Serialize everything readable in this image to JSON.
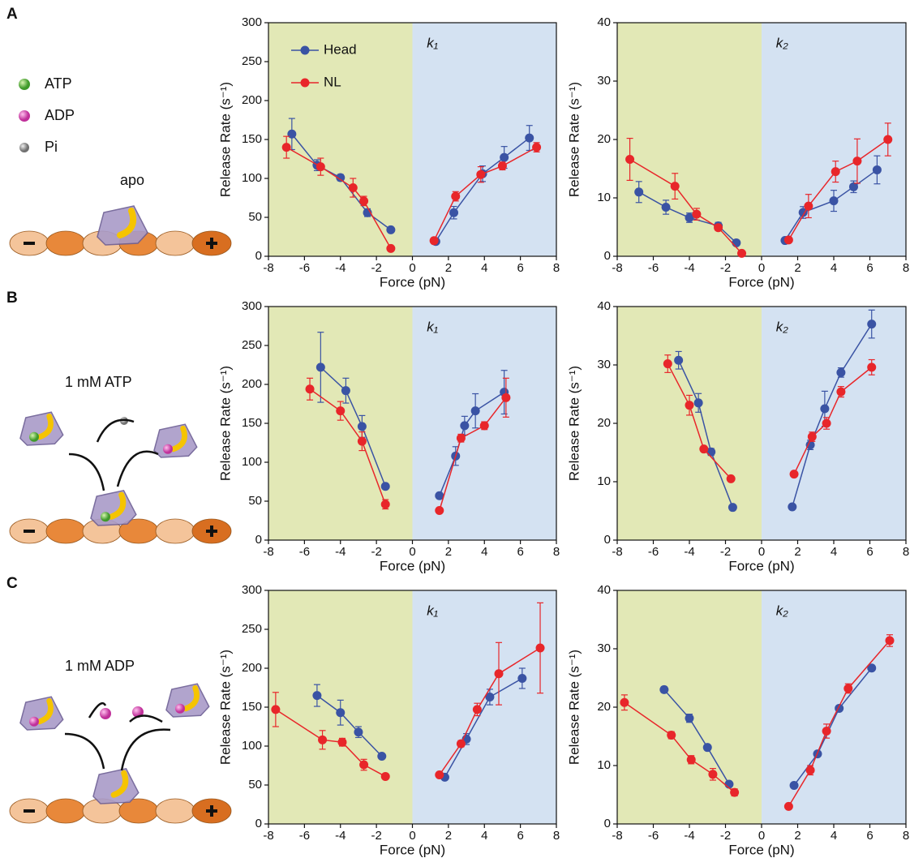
{
  "panels": [
    {
      "label": "A",
      "condition": "apo"
    },
    {
      "label": "B",
      "condition": "1 mM ATP"
    },
    {
      "label": "C",
      "condition": "1 mM ADP"
    }
  ],
  "legend_items": [
    "ATP",
    "ADP",
    "Pi"
  ],
  "chart_data": [
    {
      "type": "line",
      "annotation": "k₁",
      "xlabel": "Force (pN)",
      "ylabel": "Release Rate (s⁻¹)",
      "xlim": [
        -8,
        8
      ],
      "ylim": [
        0,
        300
      ],
      "xticks": [
        -8,
        -6,
        -4,
        -2,
        0,
        2,
        4,
        6,
        8
      ],
      "yticks": [
        0,
        50,
        100,
        150,
        200,
        250,
        300
      ],
      "legend": "upper left",
      "regions": [
        {
          "from": -8,
          "to": 0,
          "color": "#e2e8b6"
        },
        {
          "from": 0,
          "to": 8,
          "color": "#d4e2f2"
        }
      ],
      "series": [
        {
          "name": "Head",
          "color": "#3a53a4",
          "x": [
            -6.7,
            -5.3,
            -4,
            -2.5,
            -1.2,
            null,
            1.3,
            2.3,
            3.9,
            5.1,
            6.5
          ],
          "values": [
            157,
            117,
            101,
            56,
            34,
            null,
            19,
            56,
            106,
            127,
            152
          ],
          "errors": [
            20,
            7,
            4,
            5,
            null,
            null,
            null,
            8,
            10,
            14,
            16
          ]
        },
        {
          "name": "NL",
          "color": "#e8262a",
          "x": [
            -7,
            -5.1,
            -3.3,
            -2.7,
            -1.2,
            null,
            1.2,
            2.4,
            3.8,
            5,
            6.9
          ],
          "values": [
            140,
            115,
            88,
            71,
            10,
            null,
            20,
            77,
            105,
            116,
            140
          ],
          "errors": [
            14,
            11,
            12,
            6,
            null,
            null,
            null,
            6,
            10,
            5,
            6
          ]
        }
      ]
    },
    {
      "type": "line",
      "annotation": "k₂",
      "xlabel": "Force (pN)",
      "ylabel": "Release Rate (s⁻¹)",
      "xlim": [
        -8,
        8
      ],
      "ylim": [
        0,
        40
      ],
      "xticks": [
        -8,
        -6,
        -4,
        -2,
        0,
        2,
        4,
        6,
        8
      ],
      "yticks": [
        0,
        10,
        20,
        30,
        40
      ],
      "regions": [
        {
          "from": -8,
          "to": 0,
          "color": "#e2e8b6"
        },
        {
          "from": 0,
          "to": 8,
          "color": "#d4e2f2"
        }
      ],
      "series": [
        {
          "color": "#3a53a4",
          "x": [
            -6.8,
            -5.3,
            -4,
            -2.4,
            -1.4,
            null,
            1.3,
            2.3,
            4,
            5.1,
            6.4
          ],
          "values": [
            11,
            8.4,
            6.6,
            5.2,
            2.3,
            null,
            2.7,
            7.5,
            9.5,
            11.9,
            14.8
          ],
          "errors": [
            1.8,
            1.2,
            0.8,
            0.6,
            null,
            null,
            null,
            1,
            1.8,
            1,
            2.4
          ]
        },
        {
          "color": "#e8262a",
          "x": [
            -7.3,
            -4.8,
            -3.6,
            -2.4,
            -1.1,
            null,
            1.5,
            2.6,
            4.1,
            5.3,
            7
          ],
          "values": [
            16.6,
            12,
            7.2,
            4.9,
            0.5,
            null,
            2.8,
            8.6,
            14.5,
            16.3,
            20
          ],
          "errors": [
            3.6,
            2.2,
            1,
            0.5,
            null,
            null,
            null,
            2,
            1.8,
            3.8,
            2.8
          ]
        }
      ]
    },
    {
      "type": "line",
      "annotation": "k₁",
      "xlabel": "Force (pN)",
      "ylabel": "Release Rate (s⁻¹)",
      "xlim": [
        -8,
        8
      ],
      "ylim": [
        0,
        300
      ],
      "xticks": [
        -8,
        -6,
        -4,
        -2,
        0,
        2,
        4,
        6,
        8
      ],
      "yticks": [
        0,
        50,
        100,
        150,
        200,
        250,
        300
      ],
      "regions": [
        {
          "from": -8,
          "to": 0,
          "color": "#e2e8b6"
        },
        {
          "from": 0,
          "to": 8,
          "color": "#d4e2f2"
        }
      ],
      "series": [
        {
          "color": "#3a53a4",
          "x": [
            -5.1,
            -3.7,
            -2.8,
            -1.5,
            null,
            1.5,
            2.4,
            2.9,
            3.5,
            5.1
          ],
          "values": [
            222,
            192,
            146,
            69,
            null,
            57,
            108,
            147,
            166,
            190
          ],
          "errors": [
            45,
            16,
            14,
            null,
            null,
            null,
            12,
            12,
            22,
            28
          ]
        },
        {
          "color": "#e8262a",
          "x": [
            -5.7,
            -4,
            -2.8,
            -1.5,
            null,
            1.5,
            2.7,
            4,
            5.2
          ],
          "values": [
            194,
            166,
            127,
            46,
            null,
            38,
            131,
            147,
            183
          ],
          "errors": [
            14,
            12,
            12,
            6,
            null,
            null,
            5,
            5,
            25
          ]
        }
      ]
    },
    {
      "type": "line",
      "annotation": "k₂",
      "xlabel": "Force (pN)",
      "ylabel": "Release Rate (s⁻¹)",
      "xlim": [
        -8,
        8
      ],
      "ylim": [
        0,
        40
      ],
      "xticks": [
        -8,
        -6,
        -4,
        -2,
        0,
        2,
        4,
        6,
        8
      ],
      "yticks": [
        0,
        10,
        20,
        30,
        40
      ],
      "regions": [
        {
          "from": -8,
          "to": 0,
          "color": "#e2e8b6"
        },
        {
          "from": 0,
          "to": 8,
          "color": "#d4e2f2"
        }
      ],
      "series": [
        {
          "color": "#3a53a4",
          "x": [
            -4.6,
            -3.5,
            -2.8,
            -1.6,
            null,
            1.7,
            2.7,
            3.5,
            4.4,
            6.1
          ],
          "values": [
            30.8,
            23.5,
            15.1,
            5.6,
            null,
            5.7,
            16.3,
            22.5,
            28.7,
            37
          ],
          "errors": [
            1.5,
            1.6,
            0.6,
            null,
            null,
            null,
            0.8,
            3,
            0.8,
            2.4
          ]
        },
        {
          "color": "#e8262a",
          "x": [
            -5.2,
            -4,
            -3.2,
            -1.7,
            null,
            1.8,
            2.8,
            3.6,
            4.4,
            6.1
          ],
          "values": [
            30.2,
            23.1,
            15.6,
            10.5,
            null,
            11.3,
            17.7,
            20,
            25.4,
            29.6
          ],
          "errors": [
            1.5,
            1.7,
            null,
            null,
            null,
            null,
            0.8,
            1,
            0.9,
            1.3
          ]
        }
      ]
    },
    {
      "type": "line",
      "annotation": "k₁",
      "xlabel": "Force (pN)",
      "ylabel": "Release Rate (s⁻¹)",
      "xlim": [
        -8,
        8
      ],
      "ylim": [
        0,
        300
      ],
      "xticks": [
        -8,
        -6,
        -4,
        -2,
        0,
        2,
        4,
        6,
        8
      ],
      "yticks": [
        0,
        50,
        100,
        150,
        200,
        250,
        300
      ],
      "regions": [
        {
          "from": -8,
          "to": 0,
          "color": "#e2e8b6"
        },
        {
          "from": 0,
          "to": 8,
          "color": "#d4e2f2"
        }
      ],
      "series": [
        {
          "color": "#3a53a4",
          "x": [
            -5.3,
            -4,
            -3,
            -1.7,
            null,
            1.8,
            3,
            4.3,
            6.1
          ],
          "values": [
            165,
            143,
            118,
            87,
            null,
            60,
            109,
            163,
            187
          ],
          "errors": [
            14,
            16,
            7,
            null,
            null,
            null,
            7,
            10,
            13
          ]
        },
        {
          "color": "#e8262a",
          "x": [
            -7.6,
            -5,
            -3.9,
            -2.7,
            -1.5,
            null,
            1.5,
            2.7,
            3.6,
            4.8,
            7.1
          ],
          "values": [
            147,
            108,
            105,
            76,
            61,
            null,
            63,
            103,
            147,
            193,
            226
          ],
          "errors": [
            22,
            12,
            5,
            7,
            null,
            null,
            null,
            4,
            8,
            40,
            58
          ]
        }
      ]
    },
    {
      "type": "line",
      "annotation": "k₂",
      "xlabel": "Force (pN)",
      "ylabel": "Release Rate (s⁻¹)",
      "xlim": [
        -8,
        8
      ],
      "ylim": [
        0,
        40
      ],
      "xticks": [
        -8,
        -6,
        -4,
        -2,
        0,
        2,
        4,
        6,
        8
      ],
      "yticks": [
        0,
        10,
        20,
        30,
        40
      ],
      "regions": [
        {
          "from": -8,
          "to": 0,
          "color": "#e2e8b6"
        },
        {
          "from": 0,
          "to": 8,
          "color": "#d4e2f2"
        }
      ],
      "series": [
        {
          "color": "#3a53a4",
          "x": [
            -5.4,
            -4,
            -3,
            -1.8,
            null,
            1.8,
            3.1,
            4.3,
            6.1
          ],
          "values": [
            23,
            18.1,
            13.1,
            6.8,
            null,
            6.6,
            12,
            19.8,
            26.7
          ],
          "errors": [
            0.5,
            0.7,
            null,
            null,
            null,
            null,
            null,
            null,
            0.4
          ]
        },
        {
          "color": "#e8262a",
          "x": [
            -7.6,
            -5,
            -3.9,
            -2.7,
            -1.5,
            null,
            1.5,
            2.7,
            3.6,
            4.8,
            7.1
          ],
          "values": [
            20.8,
            15.2,
            11,
            8.5,
            5.4,
            null,
            3,
            9.2,
            15.9,
            23.2,
            31.4
          ],
          "errors": [
            1.3,
            0.6,
            0.7,
            1,
            0.6,
            null,
            null,
            0.8,
            1.2,
            0.8,
            1
          ]
        }
      ]
    }
  ]
}
